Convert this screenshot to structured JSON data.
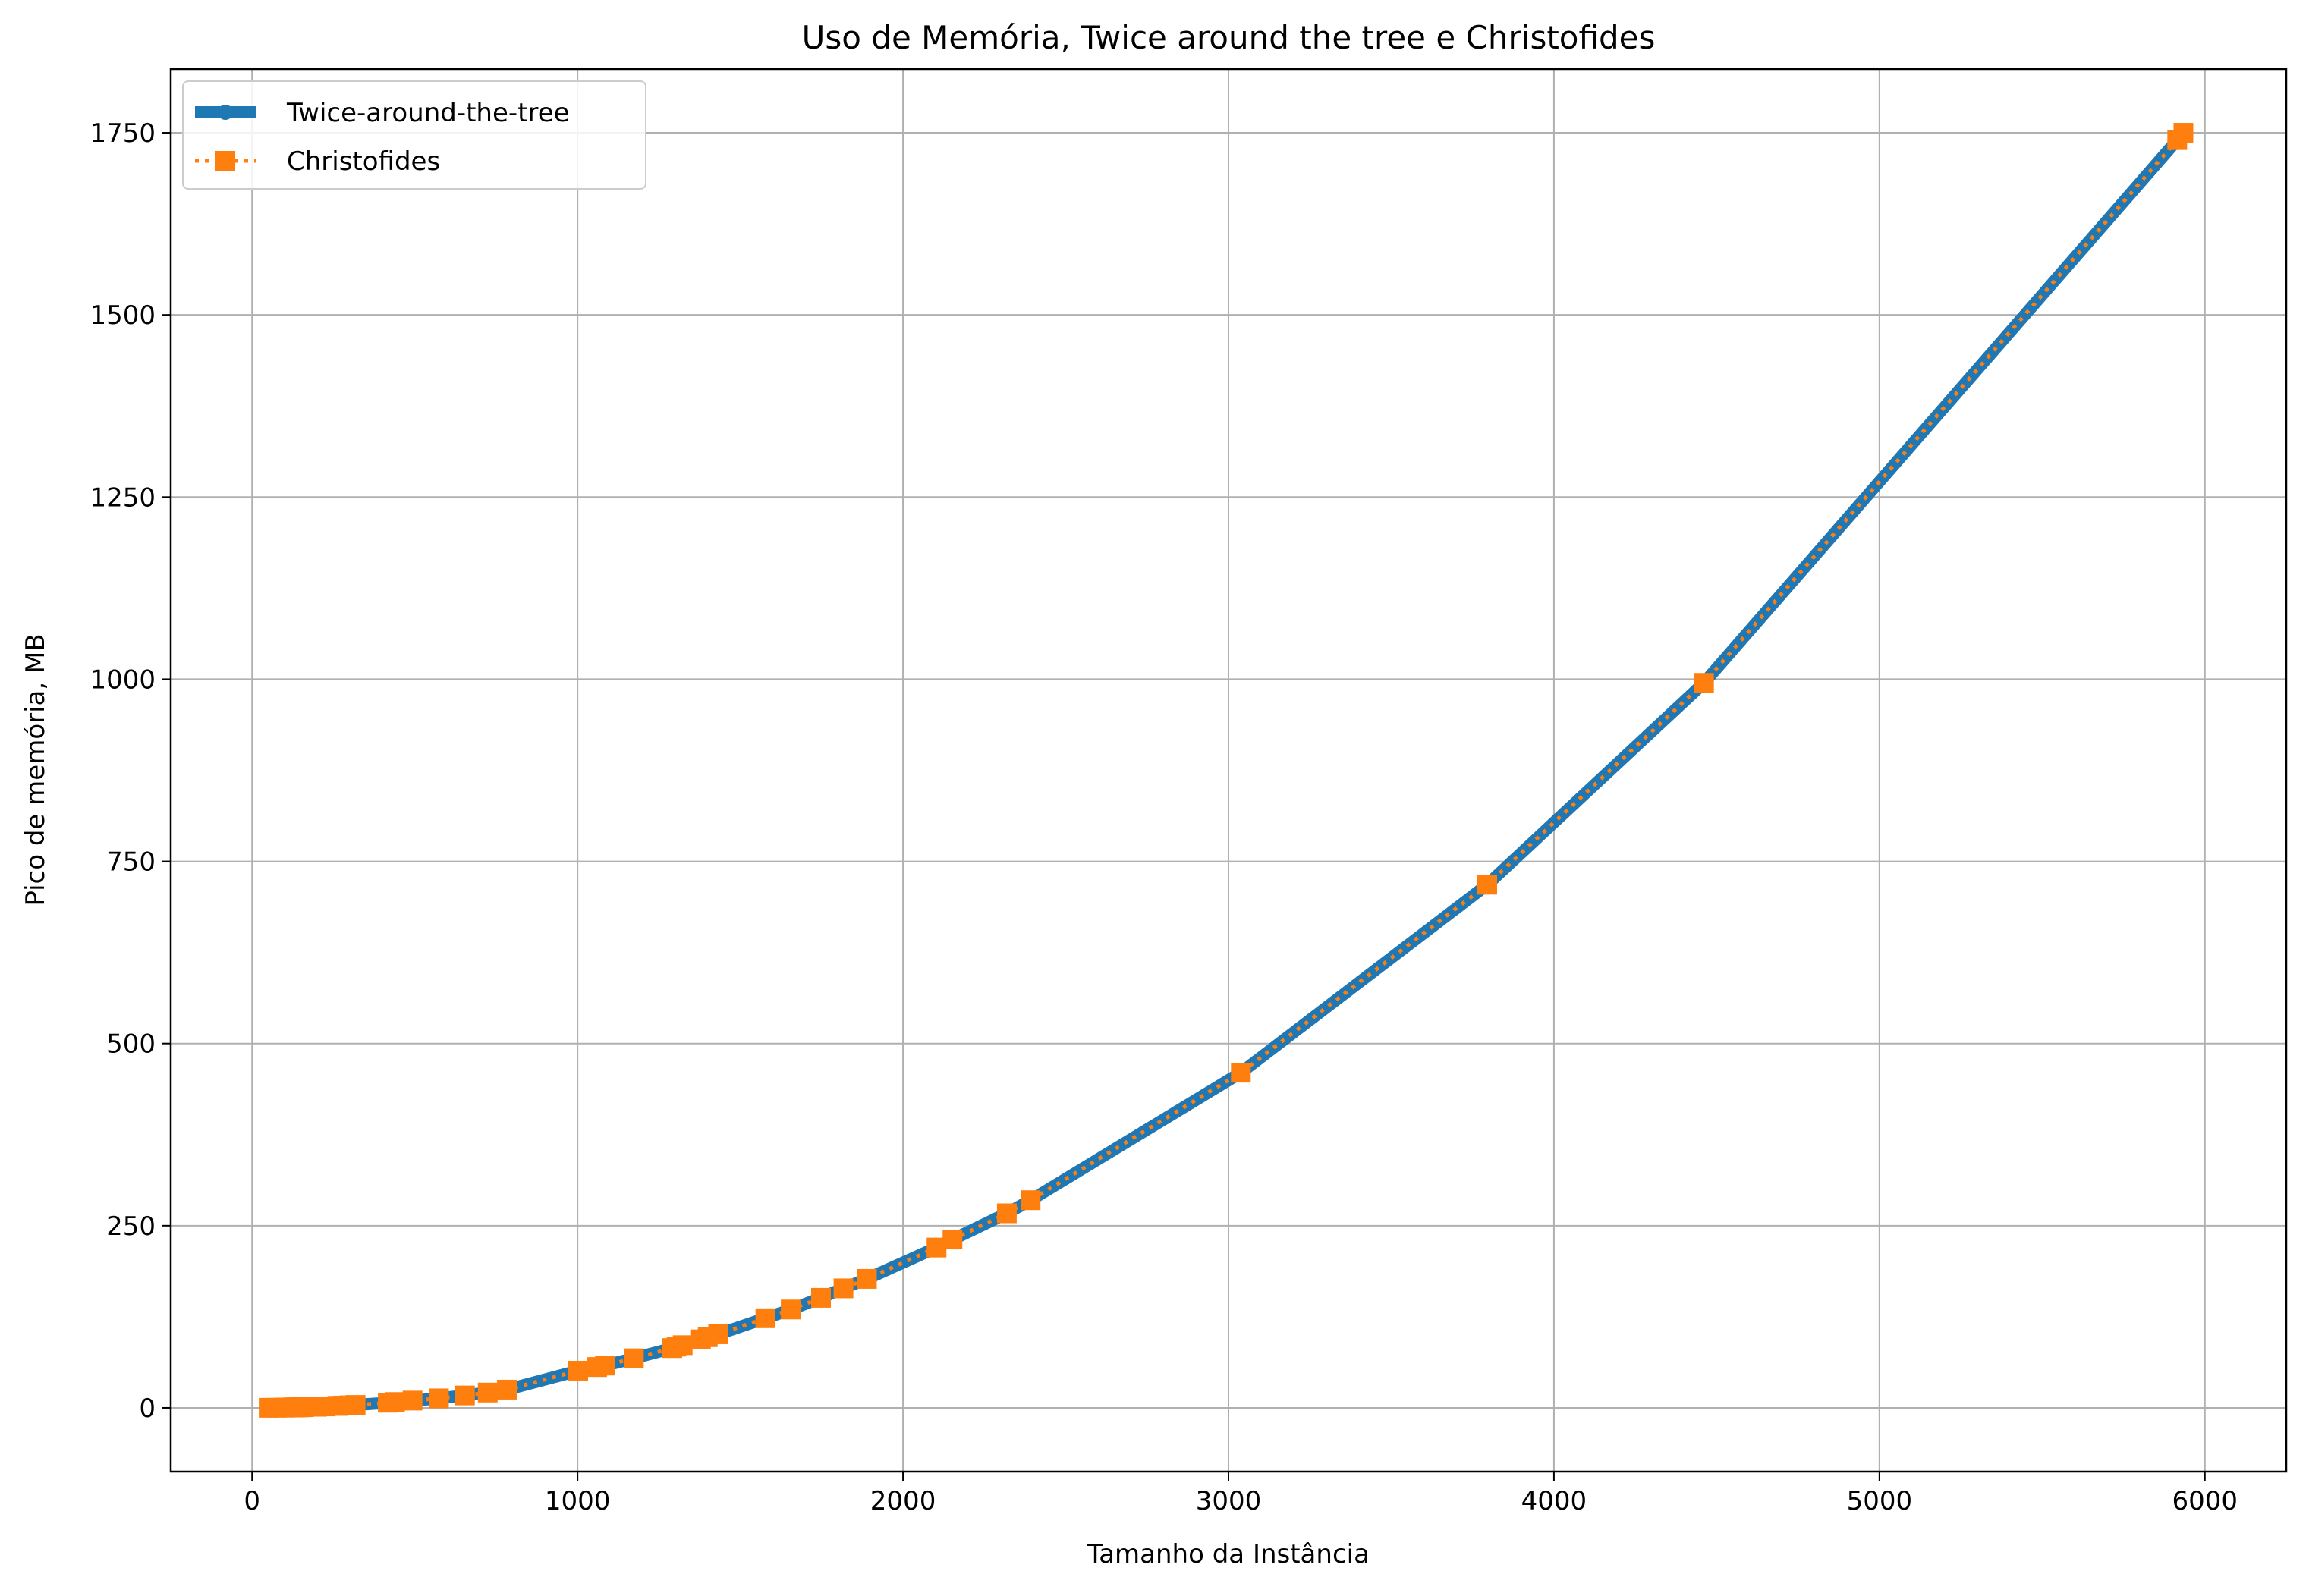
{
  "chart_data": {
    "type": "line",
    "title": "Uso de Memória, Twice around the tree e Christofides",
    "xlabel": "Tamanho da Instância",
    "ylabel": "Pico de memória, MB",
    "xlim": [
      -250,
      6250
    ],
    "ylim": [
      -87.5,
      1837.5
    ],
    "xticks": [
      0,
      1000,
      2000,
      3000,
      4000,
      5000,
      6000
    ],
    "yticks": [
      0,
      250,
      500,
      750,
      1000,
      1250,
      1500,
      1750
    ],
    "grid": true,
    "legend_position": "top-left",
    "series": [
      {
        "name": "Twice-around-the-tree",
        "color": "#1f77b4",
        "style": "solid",
        "marker": "circle",
        "x": [
          51,
          76,
          99,
          100,
          105,
          107,
          124,
          127,
          130,
          136,
          144,
          150,
          152,
          159,
          195,
          200,
          225,
          226,
          262,
          264,
          280,
          299,
          318,
          417,
          439,
          493,
          574,
          654,
          724,
          783,
          1002,
          1060,
          1084,
          1173,
          1291,
          1304,
          1323,
          1379,
          1400,
          1432,
          1577,
          1655,
          1748,
          1817,
          1889,
          2103,
          2152,
          2319,
          2392,
          3038,
          3795,
          4461,
          5915,
          5934
        ],
        "y": [
          0.1,
          0.2,
          0.4,
          0.4,
          0.4,
          0.5,
          0.6,
          0.6,
          0.7,
          0.7,
          0.8,
          0.9,
          0.9,
          1.0,
          1.5,
          1.6,
          2.0,
          2.0,
          2.7,
          2.7,
          3.1,
          3.5,
          4.0,
          7,
          8,
          10,
          13,
          17,
          21,
          25,
          51,
          56,
          58,
          68,
          82,
          84,
          86,
          94,
          97,
          101,
          123,
          135,
          151,
          164,
          177,
          220,
          231,
          267,
          285,
          460,
          718,
          995,
          1740,
          1750
        ]
      },
      {
        "name": "Christofides",
        "color": "#ff7f0e",
        "style": "dotted",
        "marker": "square",
        "x": [
          51,
          76,
          99,
          100,
          105,
          107,
          124,
          127,
          130,
          136,
          144,
          150,
          152,
          159,
          195,
          200,
          225,
          226,
          262,
          264,
          280,
          299,
          318,
          417,
          439,
          493,
          574,
          654,
          724,
          783,
          1002,
          1060,
          1084,
          1173,
          1291,
          1304,
          1323,
          1379,
          1400,
          1432,
          1577,
          1655,
          1748,
          1817,
          1889,
          2103,
          2152,
          2319,
          2392,
          3038,
          3795,
          4461,
          5915,
          5934
        ],
        "y": [
          0.1,
          0.2,
          0.4,
          0.4,
          0.4,
          0.5,
          0.6,
          0.6,
          0.7,
          0.7,
          0.8,
          0.9,
          0.9,
          1.0,
          1.5,
          1.6,
          2.0,
          2.0,
          2.7,
          2.7,
          3.1,
          3.5,
          4.0,
          7,
          8,
          10,
          13,
          17,
          21,
          25,
          51,
          56,
          58,
          68,
          82,
          84,
          86,
          94,
          97,
          101,
          123,
          135,
          151,
          164,
          177,
          220,
          231,
          267,
          285,
          460,
          718,
          995,
          1740,
          1750
        ]
      }
    ]
  }
}
